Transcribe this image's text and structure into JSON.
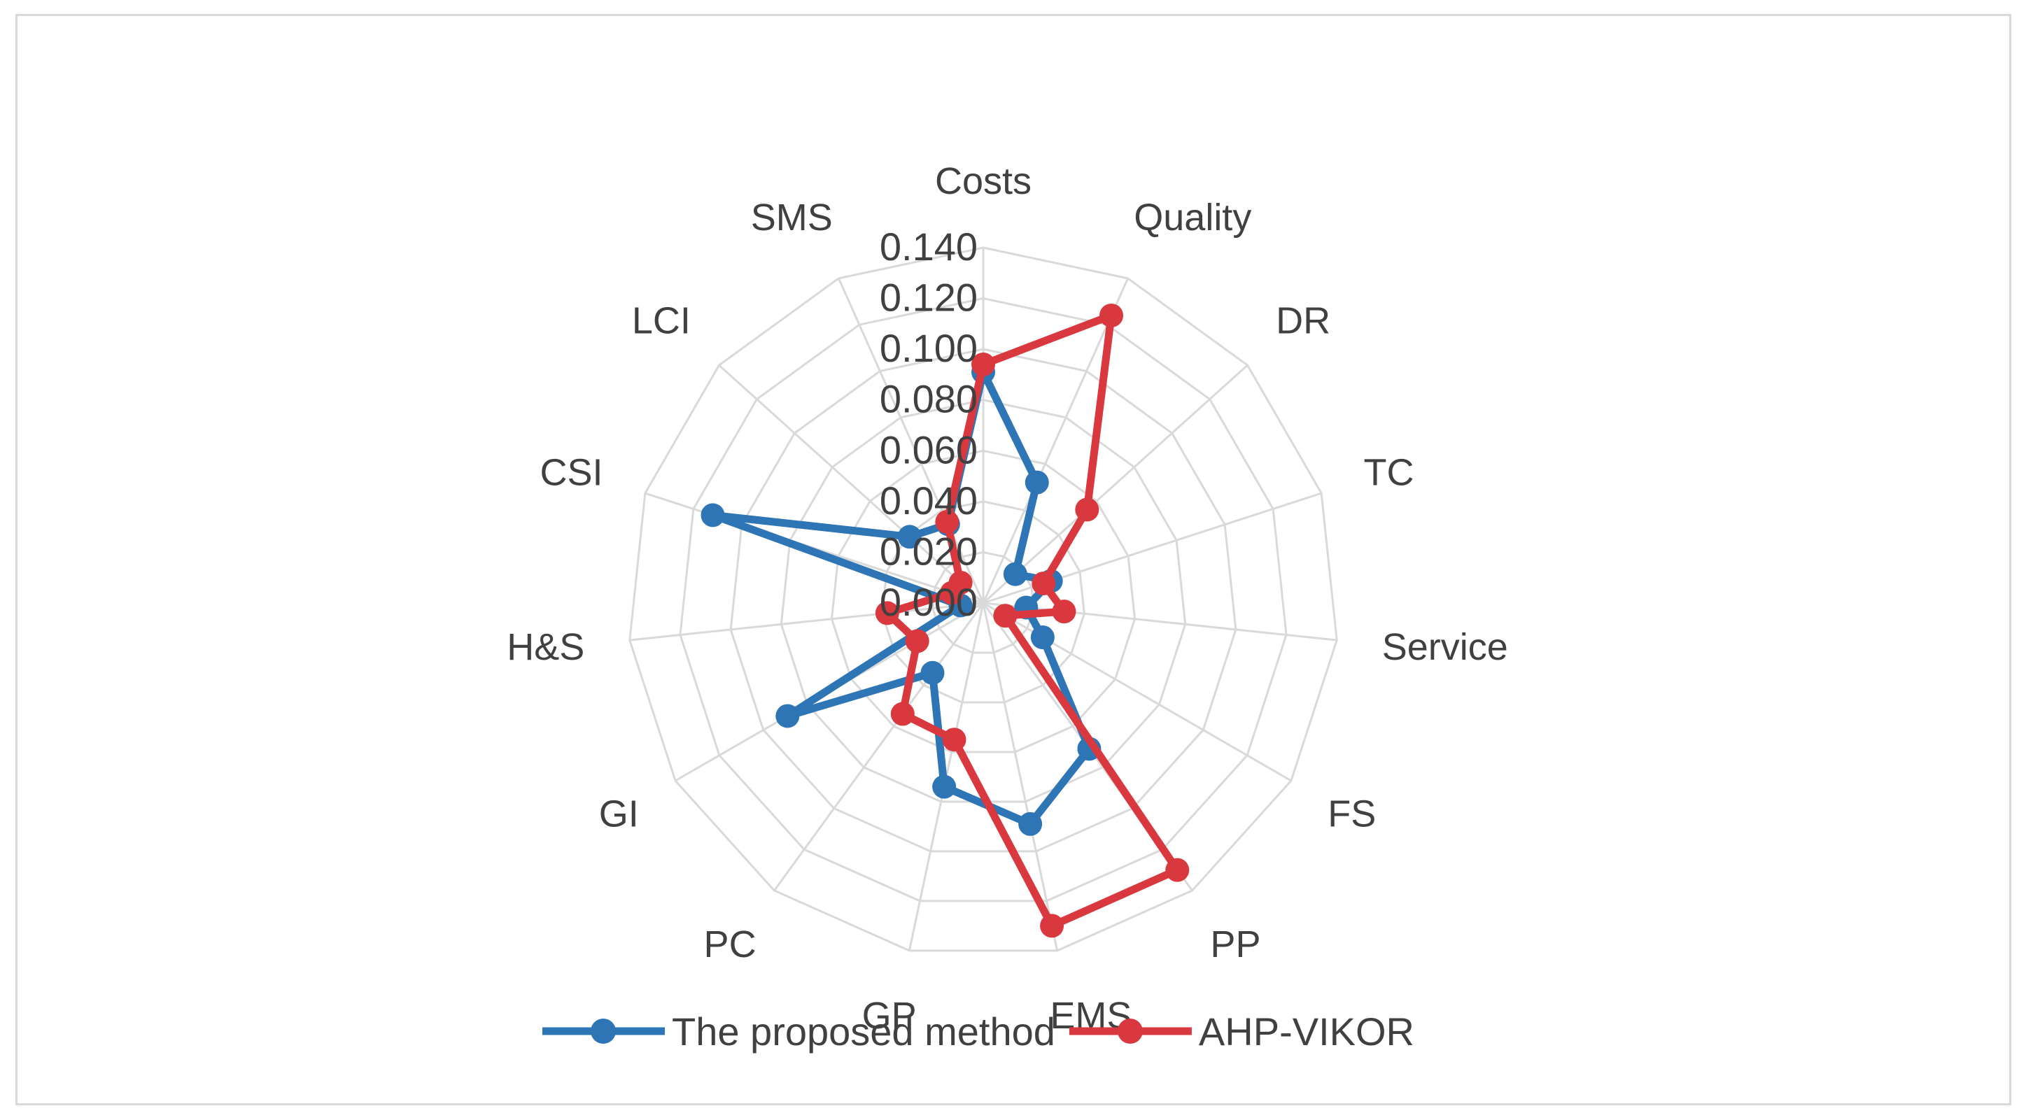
{
  "chart_data": {
    "type": "radar",
    "title": "",
    "categories": [
      "Costs",
      "Quality",
      "DR",
      "TC",
      "Service",
      "FS",
      "PP",
      "EMS",
      "GP",
      "PC",
      "GI",
      "H&S",
      "CSI",
      "LCI",
      "SMS"
    ],
    "r_ticks": [
      "0.000",
      "0.020",
      "0.040",
      "0.060",
      "0.080",
      "0.100",
      "0.120",
      "0.140"
    ],
    "r_range": [
      0,
      0.14
    ],
    "grid": true,
    "legend_position": "bottom",
    "series": [
      {
        "name": "The proposed method",
        "color": "#2e75b6",
        "values": [
          0.091,
          0.052,
          0.017,
          0.028,
          0.017,
          0.027,
          0.071,
          0.089,
          0.074,
          0.034,
          0.089,
          0.009,
          0.112,
          0.039,
          0.034
        ]
      },
      {
        "name": "AHP-VIKOR",
        "color": "#d9383e",
        "values": [
          0.094,
          0.124,
          0.055,
          0.025,
          0.032,
          0.01,
          0.13,
          0.13,
          0.055,
          0.054,
          0.03,
          0.038,
          0.013,
          0.012,
          0.035
        ]
      }
    ]
  }
}
